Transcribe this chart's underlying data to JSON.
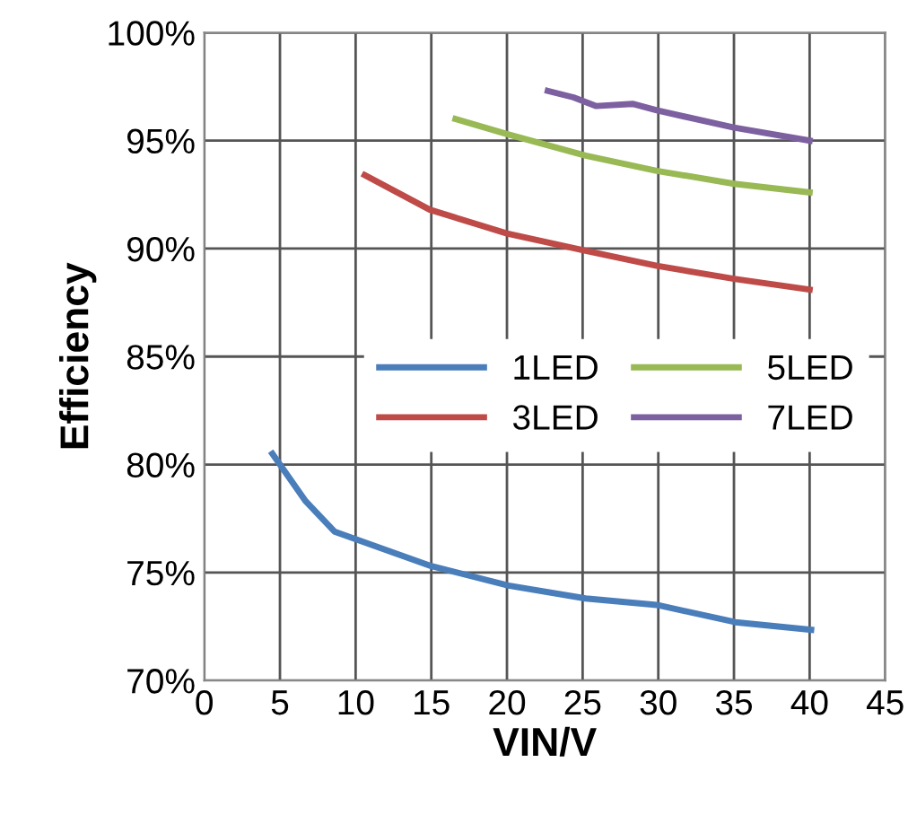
{
  "chart_data": {
    "type": "line",
    "xlabel": "VIN/V",
    "ylabel": "Efficiency",
    "xlim": [
      0,
      45
    ],
    "xticks": [
      0,
      5,
      10,
      15,
      20,
      25,
      30,
      35,
      40,
      45
    ],
    "ylim": [
      70,
      100
    ],
    "yticks": [
      {
        "value": 70,
        "label": "70%"
      },
      {
        "value": 75,
        "label": "75%"
      },
      {
        "value": 80,
        "label": "80%"
      },
      {
        "value": 85,
        "label": "85%"
      },
      {
        "value": 90,
        "label": "90%"
      },
      {
        "value": 95,
        "label": "95%"
      },
      {
        "value": 100,
        "label": "100%"
      }
    ],
    "grid": true,
    "legend": "right",
    "marker": "none",
    "line_style": "solid",
    "series": [
      {
        "name": "1LED",
        "color": "#4a7ebb",
        "x": [
          4.5,
          6.7,
          8.6,
          15.0,
          20.1,
          25.2,
          29.9,
          35.1,
          40.1
        ],
        "values": [
          80.5,
          78.3,
          76.9,
          75.3,
          74.4,
          73.8,
          73.5,
          72.7,
          72.35
        ]
      },
      {
        "name": "3LED",
        "color": "#be4b48",
        "x": [
          10.6,
          14.9,
          20.0,
          25.2,
          29.9,
          35.0,
          40.0
        ],
        "values": [
          93.4,
          91.8,
          90.7,
          89.9,
          89.2,
          88.6,
          88.1
        ]
      },
      {
        "name": "5LED",
        "color": "#98b954",
        "x": [
          16.6,
          20.0,
          25.2,
          29.9,
          35.0,
          40.0
        ],
        "values": [
          96.0,
          95.3,
          94.3,
          93.6,
          93.0,
          92.6
        ]
      },
      {
        "name": "7LED",
        "color": "#7d60a0",
        "x": [
          22.7,
          24.4,
          25.9,
          28.3,
          29.9,
          35.0,
          40.0
        ],
        "values": [
          97.3,
          97.0,
          96.6,
          96.7,
          96.4,
          95.6,
          95.0
        ]
      }
    ]
  }
}
